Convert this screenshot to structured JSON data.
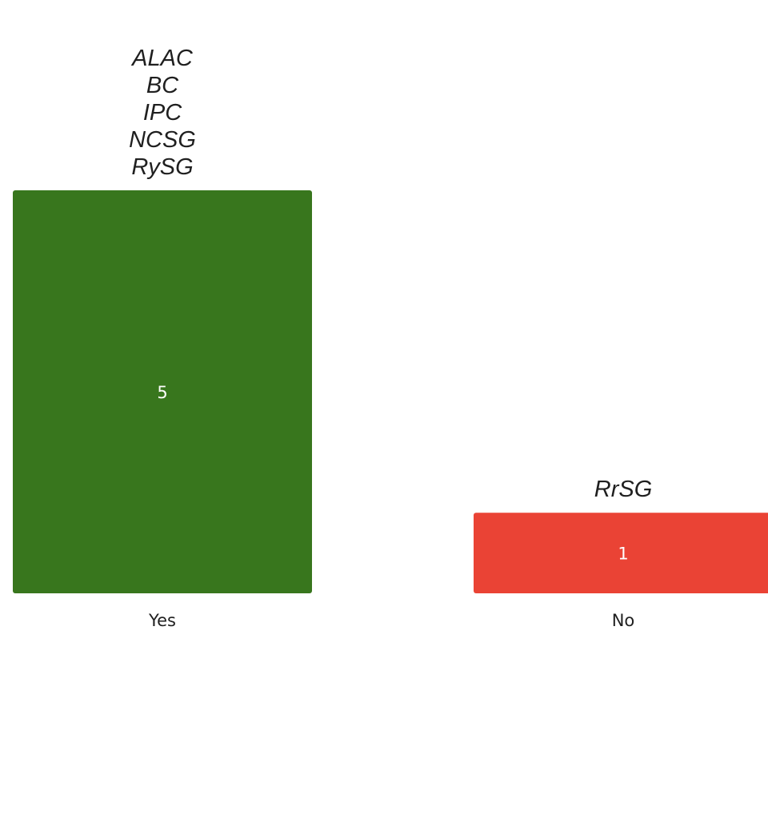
{
  "chart_data": {
    "type": "bar",
    "categories": [
      "Yes",
      "No"
    ],
    "values": [
      5,
      1
    ],
    "colors": [
      "#38761d",
      "#ea4335"
    ],
    "bar_annotations": [
      [
        "ALAC",
        "BC",
        "IPC",
        "NCSG",
        "RySG"
      ],
      [
        "RrSG"
      ]
    ],
    "title": "",
    "xlabel": "",
    "ylabel": "",
    "ylim": [
      0,
      5
    ],
    "grid": false,
    "legend": "none"
  }
}
